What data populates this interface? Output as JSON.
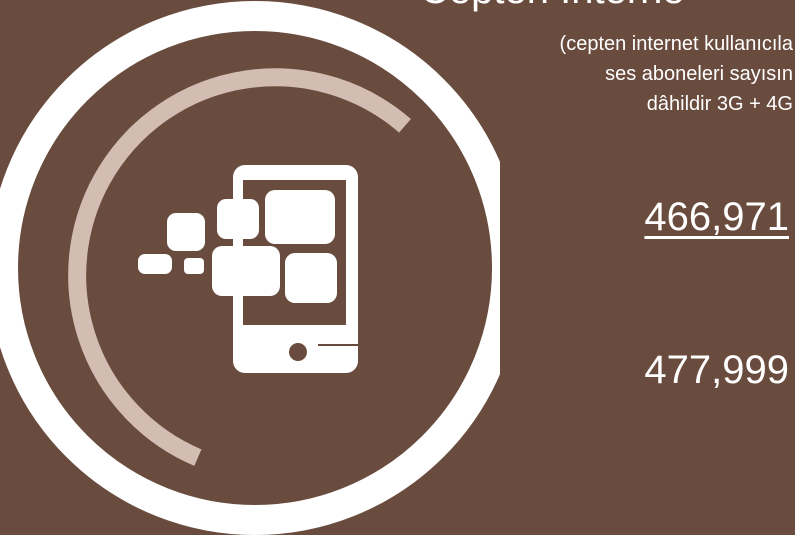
{
  "colors": {
    "background": "#6a4c3f",
    "outer_ring": "#ffffff",
    "inner_arc": "#d3bdb2",
    "text": "#ffffff"
  },
  "header": {
    "title": "Cepten Interne",
    "subtitle_lines": [
      "(cepten internet kullanıcıla",
      "ses aboneleri sayısın",
      "dâhildir 3G + 4G"
    ]
  },
  "stats": {
    "primary": "466,971",
    "secondary": "477,999"
  },
  "icons": [
    "smartphone-data-icon"
  ]
}
